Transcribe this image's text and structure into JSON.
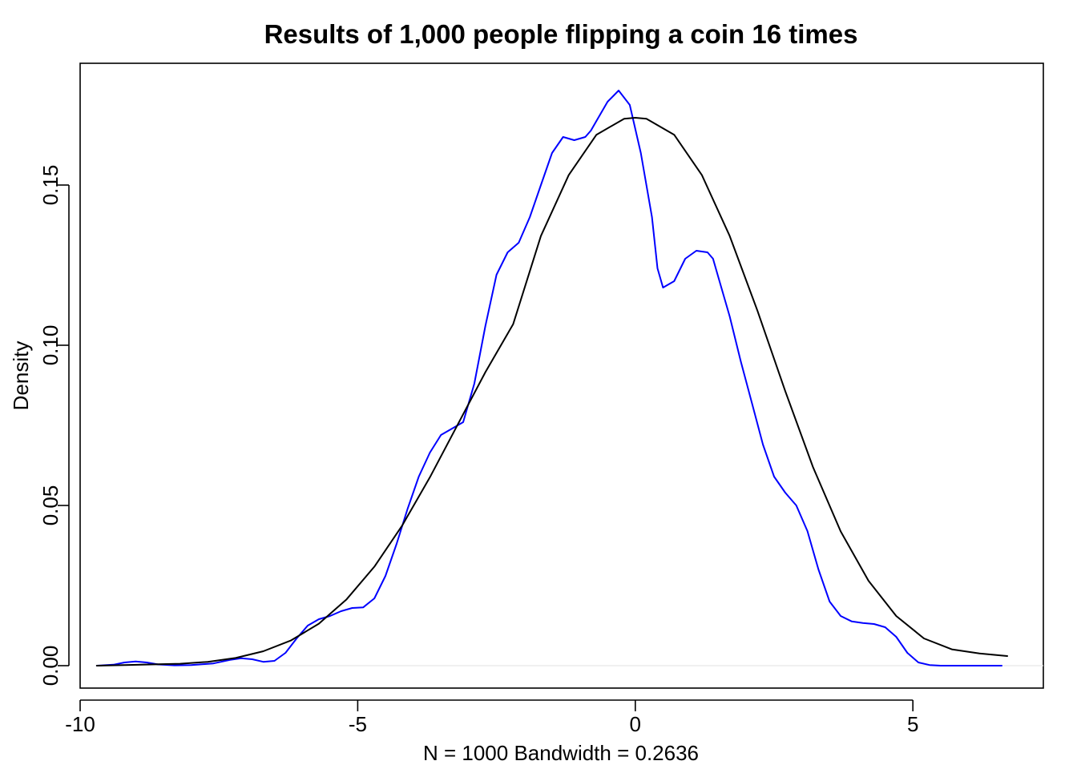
{
  "chart_data": {
    "type": "line",
    "title": "Results of 1,000 people flipping a coin 16 times",
    "xlabel": "N = 1000   Bandwidth = 0.2636",
    "ylabel": "Density",
    "xlim": [
      -10.0,
      7.35
    ],
    "ylim": [
      -0.007,
      0.188
    ],
    "x_ticks": [
      -10,
      -5,
      0,
      5
    ],
    "x_tick_labels": [
      "-10",
      "-5",
      "0",
      "5"
    ],
    "y_ticks": [
      0.0,
      0.05,
      0.1,
      0.15
    ],
    "y_tick_labels": [
      "0.00",
      "0.05",
      "0.10",
      "0.15"
    ],
    "zero_line": true,
    "grid": false,
    "legend": "none",
    "series": [
      {
        "color": "#0000ff",
        "x": [
          -9.7,
          -9.4,
          -9.2,
          -9.0,
          -8.8,
          -8.6,
          -8.3,
          -8.0,
          -7.6,
          -7.3,
          -7.1,
          -6.9,
          -6.7,
          -6.5,
          -6.3,
          -6.1,
          -5.9,
          -5.7,
          -5.5,
          -5.3,
          -5.1,
          -4.9,
          -4.7,
          -4.5,
          -4.3,
          -4.1,
          -3.9,
          -3.7,
          -3.5,
          -3.3,
          -3.1,
          -2.9,
          -2.7,
          -2.5,
          -2.3,
          -2.1,
          -1.9,
          -1.7,
          -1.5,
          -1.3,
          -1.1,
          -0.9,
          -0.8,
          -0.7,
          -0.5,
          -0.3,
          -0.1,
          0.1,
          0.3,
          0.4,
          0.5,
          0.7,
          0.9,
          1.1,
          1.3,
          1.4,
          1.5,
          1.7,
          1.9,
          2.1,
          2.3,
          2.5,
          2.7,
          2.9,
          3.1,
          3.3,
          3.5,
          3.7,
          3.9,
          4.1,
          4.3,
          4.5,
          4.7,
          4.9,
          5.1,
          5.3,
          5.5,
          5.7,
          5.9,
          6.1,
          6.3,
          6.6
        ],
        "y": [
          0.0,
          0.0003,
          0.001,
          0.0013,
          0.001,
          0.0004,
          0.0001,
          0.0002,
          0.0007,
          0.0018,
          0.0023,
          0.002,
          0.0012,
          0.0015,
          0.004,
          0.0085,
          0.0125,
          0.0145,
          0.0155,
          0.017,
          0.018,
          0.0182,
          0.021,
          0.028,
          0.038,
          0.049,
          0.059,
          0.0665,
          0.072,
          0.074,
          0.076,
          0.088,
          0.106,
          0.122,
          0.129,
          0.132,
          0.14,
          0.15,
          0.16,
          0.165,
          0.164,
          0.165,
          0.167,
          0.17,
          0.176,
          0.1795,
          0.175,
          0.16,
          0.14,
          0.124,
          0.118,
          0.12,
          0.127,
          0.1295,
          0.129,
          0.127,
          0.121,
          0.109,
          0.095,
          0.082,
          0.069,
          0.059,
          0.054,
          0.05,
          0.042,
          0.03,
          0.02,
          0.0155,
          0.0138,
          0.0133,
          0.013,
          0.012,
          0.009,
          0.004,
          0.001,
          0.0002,
          0.0,
          0.0,
          0.0,
          0.0,
          0.0,
          0.0
        ]
      },
      {
        "color": "#000000",
        "x": [
          -9.7,
          -9.2,
          -8.7,
          -8.2,
          -7.7,
          -7.2,
          -6.7,
          -6.2,
          -5.7,
          -5.2,
          -4.7,
          -4.2,
          -3.7,
          -3.2,
          -2.7,
          -2.2,
          -1.7,
          -1.2,
          -0.7,
          -0.2,
          0.0,
          0.2,
          0.7,
          1.2,
          1.7,
          2.2,
          2.7,
          3.2,
          3.7,
          4.2,
          4.7,
          5.2,
          5.7,
          6.2,
          6.7
        ],
        "y": [
          0.0,
          0.0002,
          0.0004,
          0.0006,
          0.0012,
          0.0024,
          0.0045,
          0.0079,
          0.0131,
          0.0207,
          0.0309,
          0.0437,
          0.0588,
          0.0752,
          0.0916,
          0.1066,
          0.1341,
          0.1531,
          0.1657,
          0.1707,
          0.171,
          0.1707,
          0.1657,
          0.1531,
          0.1341,
          0.1108,
          0.0857,
          0.062,
          0.0419,
          0.0265,
          0.0155,
          0.0085,
          0.0051,
          0.0038,
          0.003
        ]
      }
    ]
  }
}
